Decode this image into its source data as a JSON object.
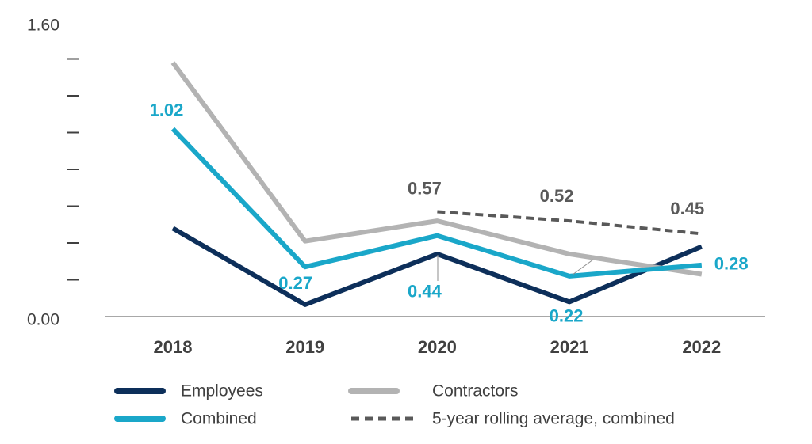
{
  "chart_data": {
    "type": "line",
    "categories": [
      "2018",
      "2019",
      "2020",
      "2021",
      "2022"
    ],
    "ylim": [
      0,
      1.6
    ],
    "yticks": [
      {
        "value": 0,
        "label": "0.00"
      },
      {
        "value": 1.6,
        "label": "1.60"
      }
    ],
    "minor_yticks": [
      0.2,
      0.4,
      0.6,
      0.8,
      1.0,
      1.2,
      1.4
    ],
    "series": [
      {
        "name": "Employees",
        "color": "#0d2f5a",
        "values": [
          0.48,
          0.065,
          0.34,
          0.08,
          0.38
        ]
      },
      {
        "name": "Contractors",
        "color": "#b3b3b3",
        "values": [
          1.38,
          0.41,
          0.52,
          0.34,
          0.23
        ]
      },
      {
        "name": "Combined",
        "color": "#1aa7c9",
        "values": [
          1.02,
          0.27,
          0.44,
          0.22,
          0.28
        ],
        "data_labels": true
      },
      {
        "name": "5-year rolling average, combined",
        "color": "#595959",
        "dashed": true,
        "values": [
          null,
          null,
          0.57,
          0.52,
          0.45
        ],
        "data_labels": true
      }
    ]
  }
}
